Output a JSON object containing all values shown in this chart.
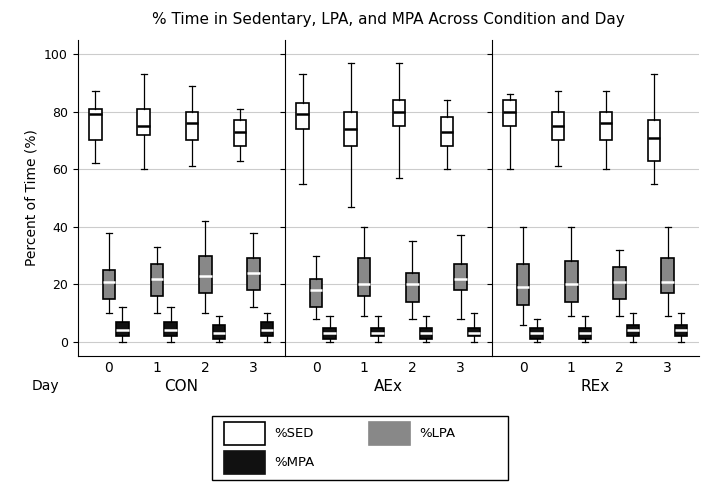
{
  "title": "% Time in Sedentary, LPA, and MPA Across Condition and Day",
  "ylabel": "Percent of Time (%)",
  "conditions": [
    "CON",
    "AEx",
    "REx"
  ],
  "days": [
    "0",
    "1",
    "2",
    "3"
  ],
  "ylim": [
    -5,
    105
  ],
  "yticks": [
    0,
    20,
    40,
    60,
    80,
    100
  ],
  "SED": {
    "CON": {
      "0": {
        "whislo": 62,
        "q1": 70,
        "med": 79,
        "q3": 81,
        "whishi": 87
      },
      "1": {
        "whislo": 60,
        "q1": 72,
        "med": 75,
        "q3": 81,
        "whishi": 93
      },
      "2": {
        "whislo": 61,
        "q1": 70,
        "med": 76,
        "q3": 80,
        "whishi": 89
      },
      "3": {
        "whislo": 63,
        "q1": 68,
        "med": 73,
        "q3": 77,
        "whishi": 81
      }
    },
    "AEx": {
      "0": {
        "whislo": 55,
        "q1": 74,
        "med": 79,
        "q3": 83,
        "whishi": 93
      },
      "1": {
        "whislo": 47,
        "q1": 68,
        "med": 74,
        "q3": 80,
        "whishi": 97
      },
      "2": {
        "whislo": 57,
        "q1": 75,
        "med": 80,
        "q3": 84,
        "whishi": 97
      },
      "3": {
        "whislo": 60,
        "q1": 68,
        "med": 73,
        "q3": 78,
        "whishi": 84
      }
    },
    "REx": {
      "0": {
        "whislo": 60,
        "q1": 75,
        "med": 80,
        "q3": 84,
        "whishi": 86
      },
      "1": {
        "whislo": 61,
        "q1": 70,
        "med": 75,
        "q3": 80,
        "whishi": 87
      },
      "2": {
        "whislo": 60,
        "q1": 70,
        "med": 76,
        "q3": 80,
        "whishi": 87
      },
      "3": {
        "whislo": 55,
        "q1": 63,
        "med": 71,
        "q3": 77,
        "whishi": 93
      }
    }
  },
  "LPA": {
    "CON": {
      "0": {
        "whislo": 10,
        "q1": 15,
        "med": 21,
        "q3": 25,
        "whishi": 38
      },
      "1": {
        "whislo": 10,
        "q1": 16,
        "med": 22,
        "q3": 27,
        "whishi": 33
      },
      "2": {
        "whislo": 10,
        "q1": 17,
        "med": 23,
        "q3": 30,
        "whishi": 42
      },
      "3": {
        "whislo": 12,
        "q1": 18,
        "med": 24,
        "q3": 29,
        "whishi": 38
      }
    },
    "AEx": {
      "0": {
        "whislo": 8,
        "q1": 12,
        "med": 18,
        "q3": 22,
        "whishi": 30
      },
      "1": {
        "whislo": 9,
        "q1": 16,
        "med": 20,
        "q3": 29,
        "whishi": 40
      },
      "2": {
        "whislo": 8,
        "q1": 14,
        "med": 20,
        "q3": 24,
        "whishi": 35
      },
      "3": {
        "whislo": 8,
        "q1": 18,
        "med": 22,
        "q3": 27,
        "whishi": 37
      }
    },
    "REx": {
      "0": {
        "whislo": 6,
        "q1": 13,
        "med": 19,
        "q3": 27,
        "whishi": 40
      },
      "1": {
        "whislo": 9,
        "q1": 14,
        "med": 20,
        "q3": 28,
        "whishi": 40
      },
      "2": {
        "whislo": 9,
        "q1": 15,
        "med": 21,
        "q3": 26,
        "whishi": 32
      },
      "3": {
        "whislo": 9,
        "q1": 17,
        "med": 21,
        "q3": 29,
        "whishi": 40
      }
    }
  },
  "MPA": {
    "CON": {
      "0": {
        "whislo": 0,
        "q1": 2,
        "med": 4,
        "q3": 7,
        "whishi": 12
      },
      "1": {
        "whislo": 0,
        "q1": 2,
        "med": 4,
        "q3": 7,
        "whishi": 12
      },
      "2": {
        "whislo": 0,
        "q1": 1,
        "med": 3,
        "q3": 6,
        "whishi": 9
      },
      "3": {
        "whislo": 0,
        "q1": 2,
        "med": 4,
        "q3": 7,
        "whishi": 10
      }
    },
    "AEx": {
      "0": {
        "whislo": 0,
        "q1": 1,
        "med": 3,
        "q3": 5,
        "whishi": 9
      },
      "1": {
        "whislo": 0,
        "q1": 2,
        "med": 3,
        "q3": 5,
        "whishi": 9
      },
      "2": {
        "whislo": 0,
        "q1": 1,
        "med": 3,
        "q3": 5,
        "whishi": 9
      },
      "3": {
        "whislo": 0,
        "q1": 2,
        "med": 3,
        "q3": 5,
        "whishi": 10
      }
    },
    "REx": {
      "0": {
        "whislo": 0,
        "q1": 1,
        "med": 3,
        "q3": 5,
        "whishi": 8
      },
      "1": {
        "whislo": 0,
        "q1": 1,
        "med": 3,
        "q3": 5,
        "whishi": 9
      },
      "2": {
        "whislo": 0,
        "q1": 2,
        "med": 4,
        "q3": 6,
        "whishi": 10
      },
      "3": {
        "whislo": 0,
        "q1": 2,
        "med": 4,
        "q3": 6,
        "whishi": 10
      }
    }
  },
  "series_colors": {
    "SED": "white",
    "LPA": "#888888",
    "MPA": "#111111"
  },
  "series_mediancolors": {
    "SED": "black",
    "LPA": "white",
    "MPA": "white"
  },
  "grid_color": "#cccccc",
  "legend_items": [
    {
      "label": "%SED",
      "fc": "white",
      "ec": "black",
      "row": 0,
      "col": 0
    },
    {
      "label": "%LPA",
      "fc": "#888888",
      "ec": "#888888",
      "row": 0,
      "col": 1
    },
    {
      "label": "%MPA",
      "fc": "#111111",
      "ec": "#111111",
      "row": 1,
      "col": 0
    }
  ]
}
